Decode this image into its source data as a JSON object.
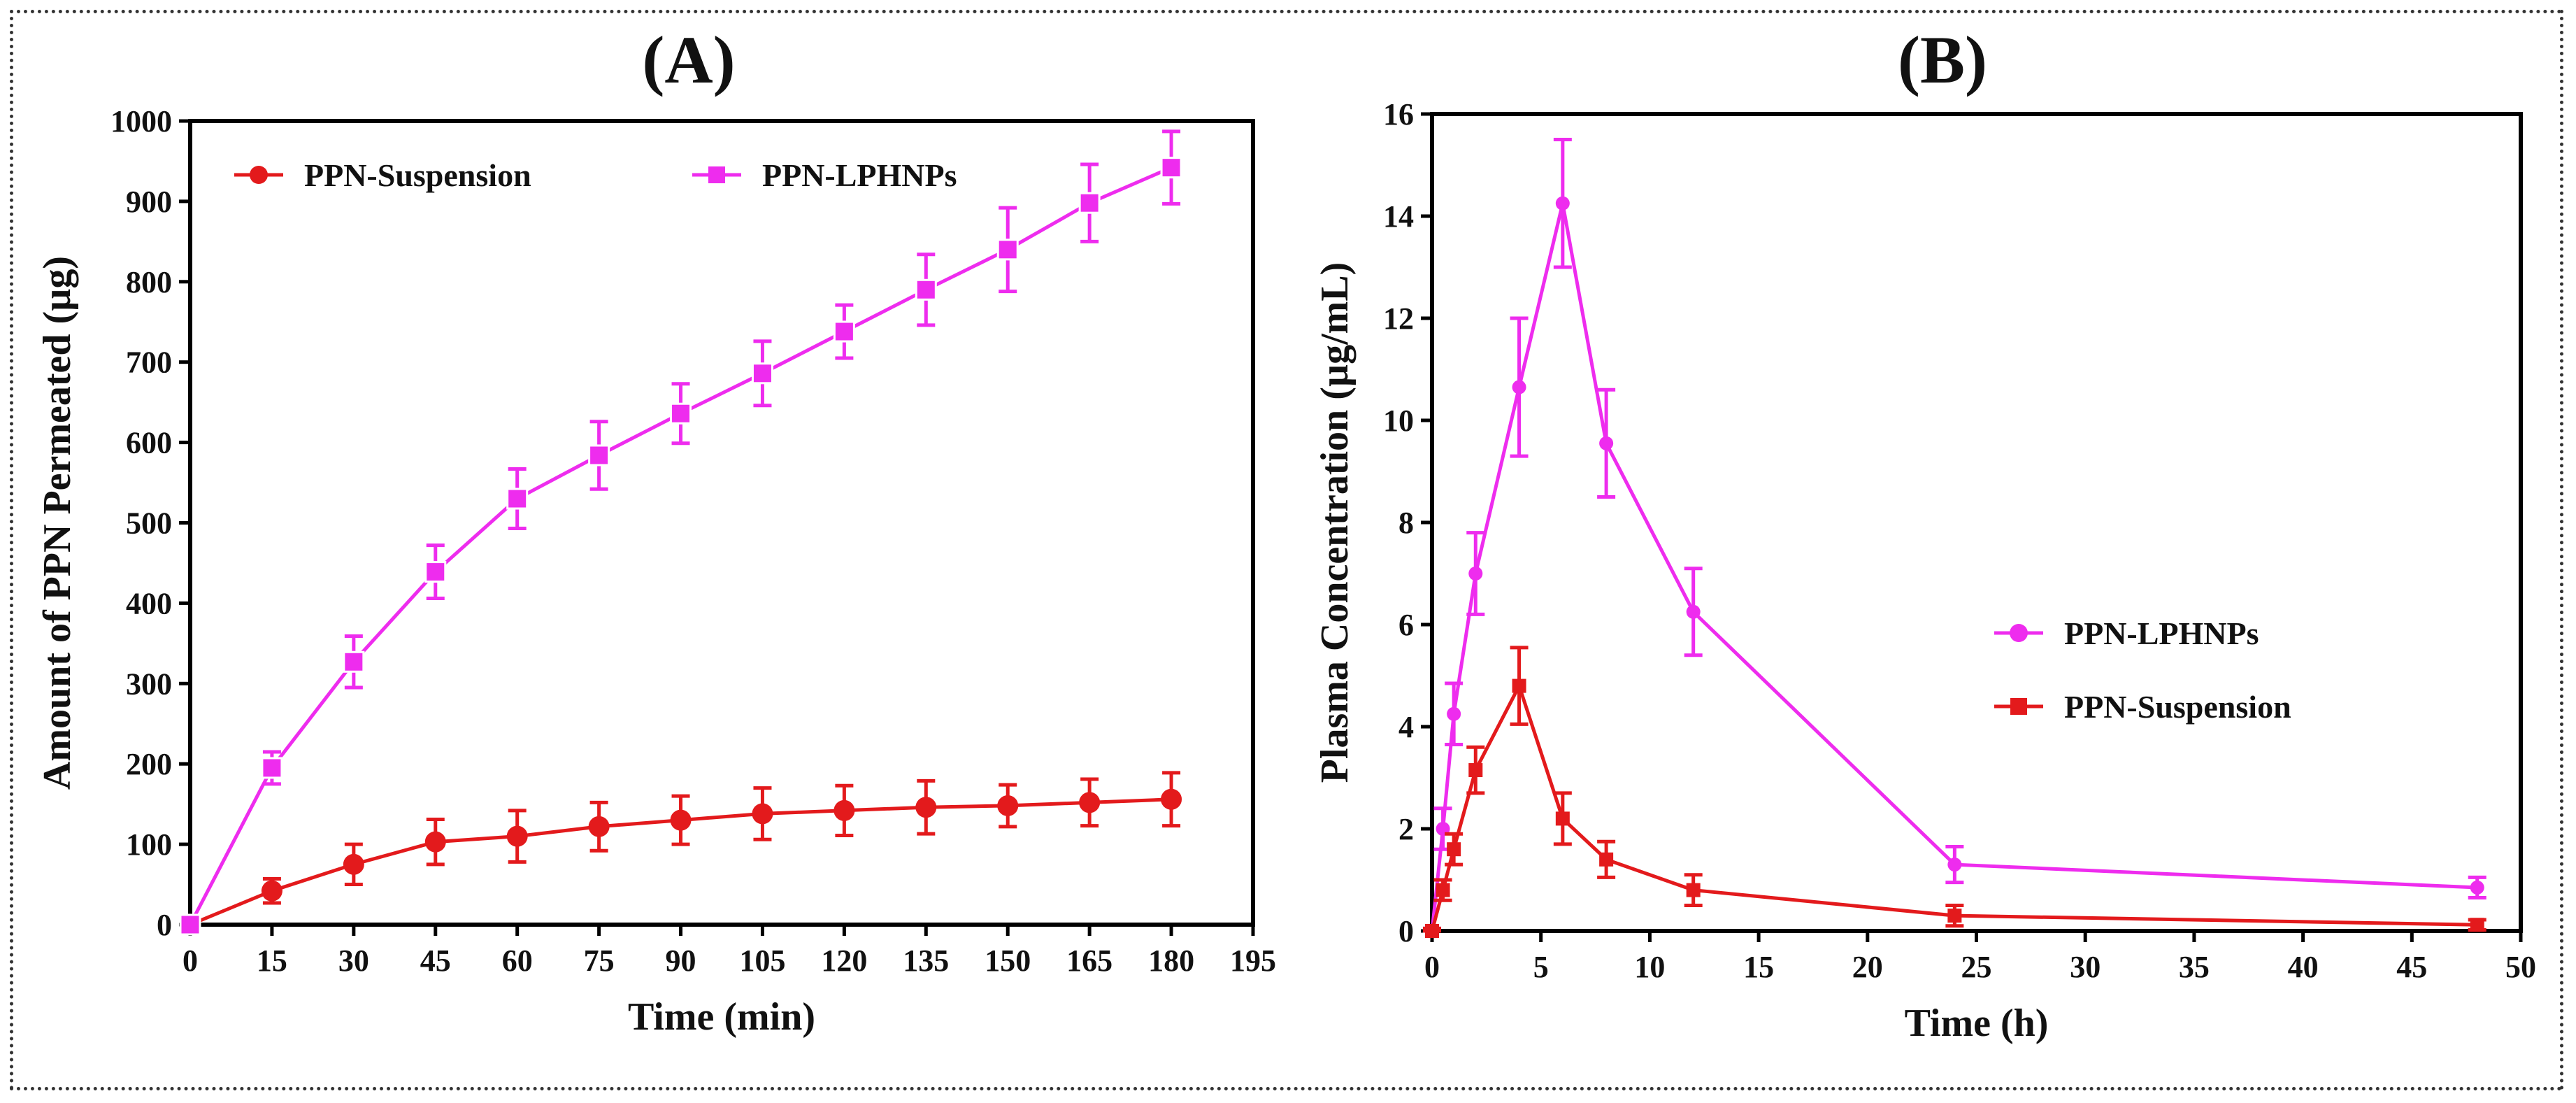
{
  "chart_data": [
    {
      "panel": "(A)",
      "type": "line",
      "xlabel": "Time (min)",
      "ylabel": "Amount of PPN Permeated (µg)",
      "xlim": [
        0,
        195
      ],
      "ylim": [
        0,
        1000
      ],
      "xticks": [
        "0",
        "15",
        "30",
        "45",
        "60",
        "75",
        "90",
        "105",
        "120",
        "135",
        "150",
        "165",
        "180",
        "195"
      ],
      "yticks": [
        "0",
        "100",
        "200",
        "300",
        "400",
        "500",
        "600",
        "700",
        "800",
        "900",
        "1000"
      ],
      "legend_position": "top-left",
      "series": [
        {
          "name": "PPN-Suspension",
          "color": "#e31a1c",
          "marker": "circle",
          "x": [
            0,
            15,
            30,
            45,
            60,
            75,
            90,
            105,
            120,
            135,
            150,
            165,
            180
          ],
          "y": [
            0,
            42,
            75,
            103,
            110,
            122,
            130,
            138,
            142,
            146,
            148,
            152,
            156
          ],
          "err": [
            3,
            15,
            25,
            28,
            32,
            30,
            30,
            32,
            31,
            33,
            26,
            29,
            33
          ]
        },
        {
          "name": "PPN-LPHNPs",
          "color": "#ee2cee",
          "marker": "square",
          "x": [
            0,
            15,
            30,
            45,
            60,
            75,
            90,
            105,
            120,
            135,
            150,
            165,
            180
          ],
          "y": [
            0,
            195,
            327,
            439,
            530,
            584,
            636,
            686,
            738,
            790,
            840,
            898,
            942
          ],
          "err": [
            3,
            20,
            32,
            33,
            37,
            42,
            37,
            40,
            33,
            44,
            52,
            48,
            45
          ]
        }
      ]
    },
    {
      "panel": "(B)",
      "type": "line",
      "xlabel": "Time (h)",
      "ylabel": "Plasma Concentration (µg/mL)",
      "xlim": [
        0,
        50
      ],
      "ylim": [
        0,
        16
      ],
      "xticks": [
        "0",
        "5",
        "10",
        "15",
        "20",
        "25",
        "30",
        "35",
        "40",
        "45",
        "50"
      ],
      "yticks": [
        "0",
        "2",
        "4",
        "6",
        "8",
        "10",
        "12",
        "14",
        "16"
      ],
      "legend_position": "center-right",
      "series": [
        {
          "name": "PPN-LPHNPs",
          "color": "#ee2cee",
          "marker": "circle",
          "x": [
            0,
            0.5,
            1,
            2,
            4,
            6,
            8,
            12,
            24,
            48
          ],
          "y": [
            0,
            2.0,
            4.25,
            7.0,
            10.65,
            14.25,
            9.55,
            6.25,
            1.3,
            0.85
          ],
          "err": [
            0.05,
            0.4,
            0.6,
            0.8,
            1.35,
            1.25,
            1.05,
            0.85,
            0.35,
            0.2
          ]
        },
        {
          "name": "PPN-Suspension",
          "color": "#e31a1c",
          "marker": "square",
          "x": [
            0,
            0.5,
            1,
            2,
            4,
            6,
            8,
            12,
            24,
            48
          ],
          "y": [
            0,
            0.8,
            1.6,
            3.15,
            4.8,
            2.2,
            1.4,
            0.8,
            0.3,
            0.12
          ],
          "err": [
            0.05,
            0.2,
            0.3,
            0.45,
            0.75,
            0.5,
            0.35,
            0.3,
            0.2,
            0.1
          ]
        }
      ]
    }
  ]
}
